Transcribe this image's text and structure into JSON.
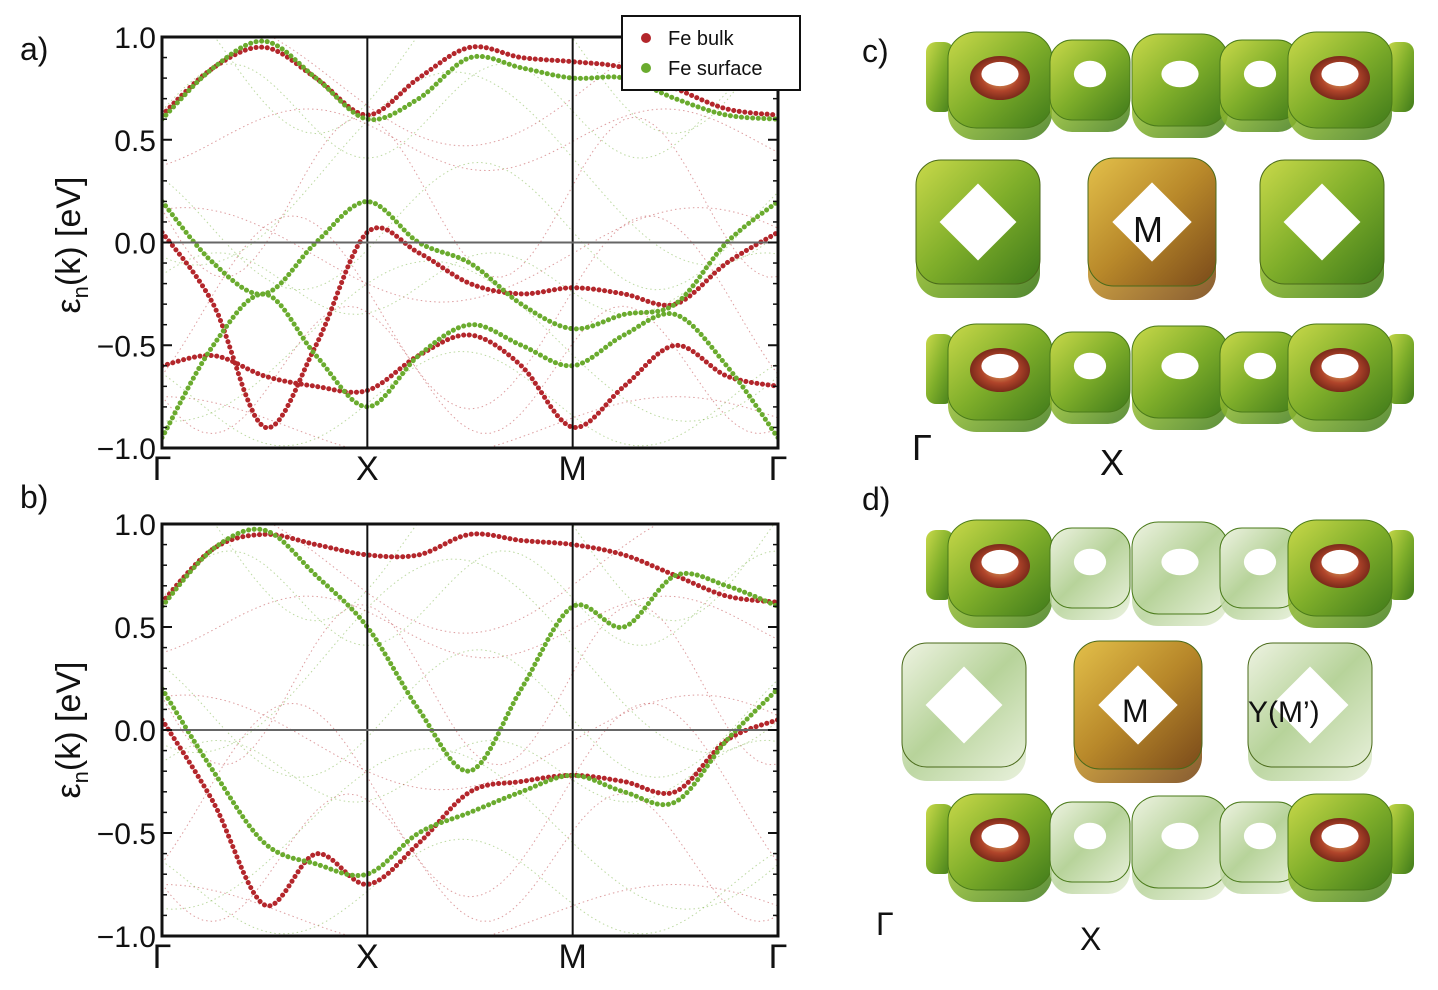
{
  "panels": {
    "a": {
      "label": "a)"
    },
    "b": {
      "label": "b)"
    },
    "c": {
      "label": "c)",
      "center_label": "M",
      "gamma_label": "Γ",
      "x_label": "X"
    },
    "d": {
      "label": "d)",
      "center_label": "M",
      "side_label": "Y(M’)",
      "gamma_label": "Γ",
      "x_label": "X"
    }
  },
  "ylabel_main": "ε",
  "ylabel_sub": "n",
  "ylabel_rest": "(k)  [eV]",
  "legend": [
    {
      "name": "Fe bulk",
      "color": "#b3262b"
    },
    {
      "name": "Fe surface",
      "color": "#6aab2e"
    }
  ],
  "colors": {
    "bulk": "#b3262b",
    "surface": "#6aab2e",
    "ring_outer": "#7fae2a",
    "ring_inner": "#a7432a",
    "ring_center": "#c08a2a"
  },
  "chart_data": [
    {
      "type": "scatter",
      "panel": "a",
      "xlabel": "",
      "ylabel": "εn(k)  [eV]",
      "ylim": [
        -1.0,
        1.0
      ],
      "yticks": [
        1.0,
        0.5,
        0.0,
        -0.5,
        -1.0
      ],
      "ytick_labels": [
        "1.0",
        "0.5",
        "0.0",
        "−0.5",
        "−1.0"
      ],
      "kpoints": [
        "Γ",
        "X",
        "M",
        "Γ"
      ],
      "grid": false,
      "legend_position": "top-right",
      "series": [
        {
          "name": "Fe bulk",
          "bands": [
            {
              "k": [
                0,
                0.25,
                0.5,
                0.75,
                1,
                1.25,
                1.5,
                1.75,
                2,
                2.25,
                2.5,
                2.75,
                3
              ],
              "e": [
                0.05,
                -0.3,
                -0.9,
                -0.5,
                0.05,
                -0.05,
                -0.2,
                -0.25,
                -0.22,
                -0.25,
                -0.3,
                -0.1,
                0.05
              ]
            },
            {
              "k": [
                0,
                0.25,
                0.5,
                0.75,
                1,
                1.25,
                1.5,
                1.75,
                2,
                2.25,
                2.5,
                2.75,
                3
              ],
              "e": [
                0.62,
                0.85,
                0.95,
                0.8,
                0.62,
                0.8,
                0.95,
                0.9,
                0.88,
                0.85,
                0.75,
                0.65,
                0.62
              ]
            },
            {
              "k": [
                0,
                0.25,
                0.5,
                0.75,
                1,
                1.25,
                1.5,
                1.75,
                2,
                2.25,
                2.5,
                2.75,
                3
              ],
              "e": [
                -0.6,
                -0.55,
                -0.65,
                -0.7,
                -0.72,
                -0.55,
                -0.45,
                -0.6,
                -0.9,
                -0.7,
                -0.5,
                -0.65,
                -0.7
              ]
            }
          ]
        },
        {
          "name": "Fe surface",
          "bands": [
            {
              "k": [
                0,
                0.25,
                0.5,
                0.75,
                1,
                1.25,
                1.5,
                1.75,
                2,
                2.25,
                2.5,
                2.75,
                3
              ],
              "e": [
                0.2,
                -0.1,
                -0.25,
                0.0,
                0.2,
                0.0,
                -0.1,
                -0.3,
                -0.42,
                -0.35,
                -0.3,
                0.0,
                0.2
              ]
            },
            {
              "k": [
                0,
                0.25,
                0.5,
                0.75,
                1,
                1.25,
                1.5,
                1.75,
                2,
                2.25,
                2.5,
                2.75,
                3
              ],
              "e": [
                -0.95,
                -0.5,
                -0.25,
                -0.55,
                -0.8,
                -0.55,
                -0.4,
                -0.5,
                -0.6,
                -0.45,
                -0.35,
                -0.6,
                -0.95
              ]
            },
            {
              "k": [
                0,
                0.25,
                0.5,
                0.75,
                1,
                1.25,
                1.5,
                1.75,
                2,
                2.25,
                2.5,
                2.75,
                3
              ],
              "e": [
                0.6,
                0.85,
                0.98,
                0.8,
                0.6,
                0.7,
                0.9,
                0.85,
                0.8,
                0.8,
                0.7,
                0.62,
                0.6
              ]
            }
          ]
        }
      ]
    },
    {
      "type": "scatter",
      "panel": "b",
      "xlabel": "",
      "ylabel": "εn(k)  [eV]",
      "ylim": [
        -1.0,
        1.0
      ],
      "yticks": [
        1.0,
        0.5,
        0.0,
        -0.5,
        -1.0
      ],
      "ytick_labels": [
        "1.0",
        "0.5",
        "0.0",
        "−0.5",
        "−1.0"
      ],
      "kpoints": [
        "Γ",
        "X",
        "M",
        "Γ"
      ],
      "grid": false,
      "series": [
        {
          "name": "Fe bulk",
          "bands": [
            {
              "k": [
                0,
                0.25,
                0.5,
                0.75,
                1,
                1.25,
                1.5,
                1.75,
                2,
                2.25,
                2.5,
                2.75,
                3
              ],
              "e": [
                0.05,
                -0.35,
                -0.85,
                -0.6,
                -0.75,
                -0.55,
                -0.3,
                -0.25,
                -0.22,
                -0.25,
                -0.3,
                -0.05,
                0.05
              ]
            },
            {
              "k": [
                0,
                0.25,
                0.5,
                0.75,
                1,
                1.25,
                1.5,
                1.75,
                2,
                2.25,
                2.5,
                2.75,
                3
              ],
              "e": [
                0.62,
                0.88,
                0.95,
                0.9,
                0.85,
                0.85,
                0.95,
                0.92,
                0.9,
                0.85,
                0.75,
                0.65,
                0.62
              ]
            }
          ]
        },
        {
          "name": "Fe surface",
          "bands": [
            {
              "k": [
                0,
                0.25,
                0.5,
                0.75,
                1,
                1.25,
                1.5,
                1.75,
                2,
                2.25,
                2.5,
                2.75,
                3
              ],
              "e": [
                0.2,
                -0.2,
                -0.55,
                -0.65,
                -0.7,
                -0.5,
                -0.4,
                -0.3,
                -0.22,
                -0.3,
                -0.35,
                -0.05,
                0.2
              ]
            },
            {
              "k": [
                0,
                0.25,
                0.5,
                0.75,
                1,
                1.25,
                1.5,
                1.75,
                2,
                2.25,
                2.5,
                2.75,
                3
              ],
              "e": [
                0.6,
                0.88,
                0.97,
                0.75,
                0.5,
                0.1,
                -0.2,
                0.2,
                0.6,
                0.5,
                0.75,
                0.7,
                0.6
              ]
            }
          ]
        }
      ]
    }
  ]
}
